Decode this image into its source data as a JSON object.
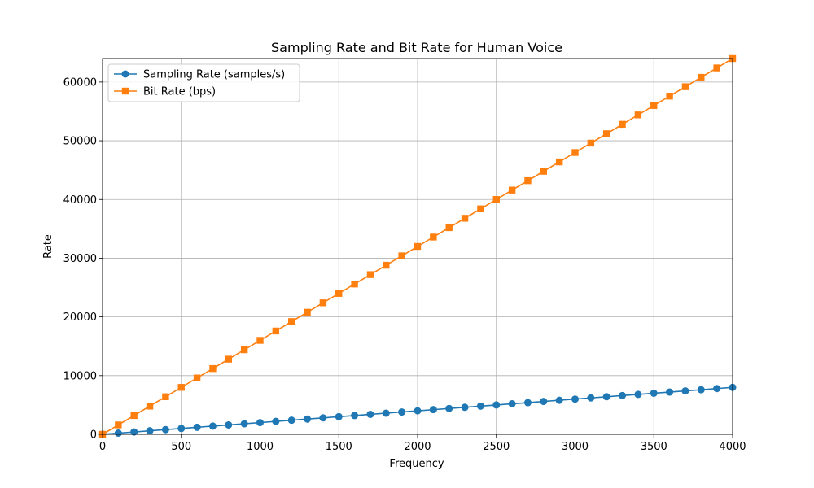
{
  "chart_data": {
    "type": "line",
    "title": "Sampling Rate and Bit Rate for Human Voice",
    "xlabel": "Frequency",
    "ylabel": "Rate",
    "xlim": [
      0,
      4000
    ],
    "ylim": [
      0,
      64000
    ],
    "xticks": [
      0,
      500,
      1000,
      1500,
      2000,
      2500,
      3000,
      3500,
      4000
    ],
    "yticks": [
      0,
      10000,
      20000,
      30000,
      40000,
      50000,
      60000
    ],
    "grid": true,
    "legend_position": "upper-left",
    "x": [
      0,
      100,
      200,
      300,
      400,
      500,
      600,
      700,
      800,
      900,
      1000,
      1100,
      1200,
      1300,
      1400,
      1500,
      1600,
      1700,
      1800,
      1900,
      2000,
      2100,
      2200,
      2300,
      2400,
      2500,
      2600,
      2700,
      2800,
      2900,
      3000,
      3100,
      3200,
      3300,
      3400,
      3500,
      3600,
      3700,
      3800,
      3900,
      4000
    ],
    "series": [
      {
        "name": "Sampling Rate (samples/s)",
        "color": "#1f77b4",
        "marker": "circle",
        "values": [
          0,
          200,
          400,
          600,
          800,
          1000,
          1200,
          1400,
          1600,
          1800,
          2000,
          2200,
          2400,
          2600,
          2800,
          3000,
          3200,
          3400,
          3600,
          3800,
          4000,
          4200,
          4400,
          4600,
          4800,
          5000,
          5200,
          5400,
          5600,
          5800,
          6000,
          6200,
          6400,
          6600,
          6800,
          7000,
          7200,
          7400,
          7600,
          7800,
          8000
        ]
      },
      {
        "name": "Bit Rate (bps)",
        "color": "#ff7f0e",
        "marker": "square",
        "values": [
          0,
          1600,
          3200,
          4800,
          6400,
          8000,
          9600,
          11200,
          12800,
          14400,
          16000,
          17600,
          19200,
          20800,
          22400,
          24000,
          25600,
          27200,
          28800,
          30400,
          32000,
          33600,
          35200,
          36800,
          38400,
          40000,
          41600,
          43200,
          44800,
          46400,
          48000,
          49600,
          51200,
          52800,
          54400,
          56000,
          57600,
          59200,
          60800,
          62400,
          64000
        ]
      }
    ]
  }
}
